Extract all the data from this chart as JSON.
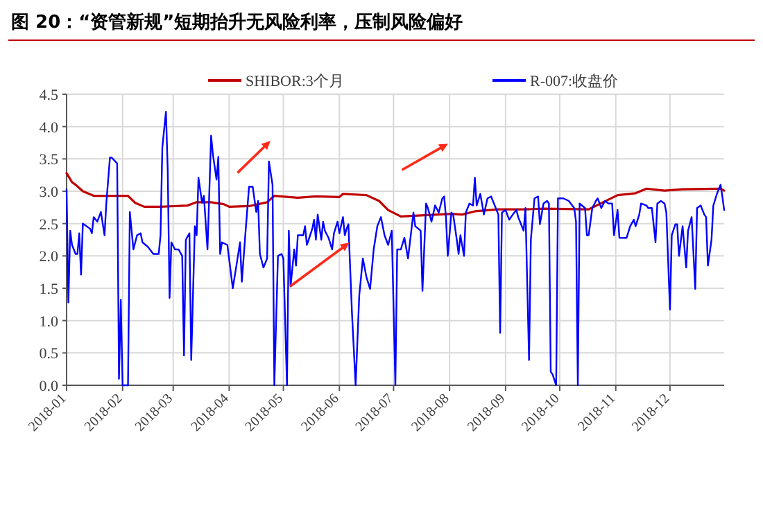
{
  "chart_data": {
    "type": "line",
    "title": "图 20：“资管新规”短期抬升无风险利率，压制风险偏好",
    "xlim": [
      "2018-01-01",
      "2018-12-31"
    ],
    "xticks": [
      "2018-01",
      "2018-02",
      "2018-03",
      "2018-04",
      "2018-05",
      "2018-06",
      "2018-07",
      "2018-08",
      "2018-09",
      "2018-10",
      "2018-11",
      "2018-12"
    ],
    "ylim": [
      0,
      4.5
    ],
    "yticks": [
      {
        "value": 0,
        "label": "0.0"
      },
      {
        "value": 0.5,
        "label": "0.5"
      },
      {
        "value": 1,
        "label": "1.0"
      },
      {
        "value": 1.5,
        "label": "1.5"
      },
      {
        "value": 2,
        "label": "2.0"
      },
      {
        "value": 2.5,
        "label": "2.5"
      },
      {
        "value": 3,
        "label": "3.0"
      },
      {
        "value": 3.5,
        "label": "3.5"
      },
      {
        "value": 4,
        "label": "4.0"
      },
      {
        "value": 4.5,
        "label": "4.5"
      }
    ],
    "grid": true,
    "legend": "top",
    "marker": "none",
    "line_style": "solid",
    "series": [
      {
        "name": "SHIBOR:3个月",
        "color": "#c00000",
        "x": [
          "2018-01-01",
          "2018-01-04",
          "2018-01-06",
          "2018-01-10",
          "2018-01-16",
          "2018-02-04",
          "2018-02-08",
          "2018-02-13",
          "2018-02-22",
          "2018-03-09",
          "2018-03-14",
          "2018-03-22",
          "2018-03-29",
          "2018-04-01",
          "2018-04-12",
          "2018-04-22",
          "2018-04-26",
          "2018-05-09",
          "2018-05-19",
          "2018-06-01",
          "2018-06-03",
          "2018-06-16",
          "2018-06-23",
          "2018-06-28",
          "2018-07-05",
          "2018-07-18",
          "2018-08-02",
          "2018-08-08",
          "2018-08-15",
          "2018-08-28",
          "2018-09-12",
          "2018-09-22",
          "2018-10-17",
          "2018-10-25",
          "2018-11-02",
          "2018-11-12",
          "2018-11-18",
          "2018-11-28",
          "2018-12-08",
          "2018-12-29",
          "2018-12-31"
        ],
        "values": [
          3.28,
          3.14,
          3.1,
          3.0,
          2.93,
          2.93,
          2.82,
          2.76,
          2.76,
          2.78,
          2.83,
          2.83,
          2.8,
          2.76,
          2.77,
          2.83,
          2.93,
          2.9,
          2.92,
          2.91,
          2.96,
          2.94,
          2.85,
          2.71,
          2.61,
          2.63,
          2.65,
          2.64,
          2.69,
          2.72,
          2.72,
          2.73,
          2.72,
          2.83,
          2.94,
          2.97,
          3.04,
          3.01,
          3.03,
          3.04,
          3.01
        ]
      },
      {
        "name": "R-007:收盘价",
        "color": "#0000ff",
        "x": [
          "2018-01-01",
          "2018-01-02",
          "2018-01-03",
          "2018-01-04",
          "2018-01-06",
          "2018-01-07",
          "2018-01-08",
          "2018-01-09",
          "2018-01-10",
          "2018-01-12",
          "2018-01-14",
          "2018-01-15",
          "2018-01-16",
          "2018-01-18",
          "2018-01-20",
          "2018-01-22",
          "2018-01-23",
          "2018-01-25",
          "2018-01-26",
          "2018-01-29",
          "2018-01-30",
          "2018-01-31",
          "2018-02-01",
          "2018-02-02",
          "2018-02-04",
          "2018-02-05",
          "2018-02-07",
          "2018-02-09",
          "2018-02-11",
          "2018-02-12",
          "2018-02-15",
          "2018-02-18",
          "2018-02-21",
          "2018-02-22",
          "2018-02-23",
          "2018-02-25",
          "2018-02-26",
          "2018-02-27",
          "2018-02-28",
          "2018-03-02",
          "2018-03-04",
          "2018-03-06",
          "2018-03-07",
          "2018-03-08",
          "2018-03-10",
          "2018-03-11",
          "2018-03-13",
          "2018-03-14",
          "2018-03-15",
          "2018-03-17",
          "2018-03-18",
          "2018-03-20",
          "2018-03-22",
          "2018-03-23",
          "2018-03-25",
          "2018-03-26",
          "2018-03-27",
          "2018-03-28",
          "2018-03-31",
          "2018-04-03",
          "2018-04-05",
          "2018-04-07",
          "2018-04-08",
          "2018-04-10",
          "2018-04-12",
          "2018-04-14",
          "2018-04-16",
          "2018-04-17",
          "2018-04-18",
          "2018-04-20",
          "2018-04-22",
          "2018-04-23",
          "2018-04-25",
          "2018-04-26",
          "2018-04-28",
          "2018-04-30",
          "2018-05-01",
          "2018-05-03",
          "2018-05-04",
          "2018-05-05",
          "2018-05-07",
          "2018-05-08",
          "2018-05-09",
          "2018-05-12",
          "2018-05-13",
          "2018-05-14",
          "2018-05-15",
          "2018-05-17",
          "2018-05-18",
          "2018-05-19",
          "2018-05-20",
          "2018-05-22",
          "2018-05-23",
          "2018-05-24",
          "2018-05-26",
          "2018-05-28",
          "2018-05-29",
          "2018-05-31",
          "2018-06-01",
          "2018-06-03",
          "2018-06-04",
          "2018-06-05",
          "2018-06-06",
          "2018-06-08",
          "2018-06-10",
          "2018-06-12",
          "2018-06-14",
          "2018-06-16",
          "2018-06-18",
          "2018-06-20",
          "2018-06-22",
          "2018-06-24",
          "2018-06-26",
          "2018-06-28",
          "2018-06-30",
          "2018-07-02",
          "2018-07-03",
          "2018-07-05",
          "2018-07-07",
          "2018-07-09",
          "2018-07-12",
          "2018-07-13",
          "2018-07-16",
          "2018-07-17",
          "2018-07-19",
          "2018-07-20",
          "2018-07-22",
          "2018-07-24",
          "2018-07-26",
          "2018-07-28",
          "2018-07-29",
          "2018-07-30",
          "2018-07-31",
          "2018-08-02",
          "2018-08-03",
          "2018-08-05",
          "2018-08-06",
          "2018-08-07",
          "2018-08-09",
          "2018-08-10",
          "2018-08-12",
          "2018-08-14",
          "2018-08-15",
          "2018-08-16",
          "2018-08-18",
          "2018-08-20",
          "2018-08-22",
          "2018-08-24",
          "2018-08-26",
          "2018-08-28",
          "2018-08-29",
          "2018-08-30",
          "2018-09-01",
          "2018-09-03",
          "2018-09-05",
          "2018-09-07",
          "2018-09-08",
          "2018-09-11",
          "2018-09-12",
          "2018-09-14",
          "2018-09-15",
          "2018-09-17",
          "2018-09-19",
          "2018-09-20",
          "2018-09-22",
          "2018-09-24",
          "2018-09-25",
          "2018-09-26",
          "2018-09-27",
          "2018-09-29",
          "2018-09-30",
          "2018-10-03",
          "2018-10-06",
          "2018-10-09",
          "2018-10-10",
          "2018-10-11",
          "2018-10-12",
          "2018-10-15",
          "2018-10-16",
          "2018-10-17",
          "2018-10-19",
          "2018-10-21",
          "2018-10-22",
          "2018-10-24",
          "2018-10-26",
          "2018-10-28",
          "2018-10-30",
          "2018-10-31",
          "2018-11-02",
          "2018-11-03",
          "2018-11-05",
          "2018-11-07",
          "2018-11-09",
          "2018-11-11",
          "2018-11-12",
          "2018-11-14",
          "2018-11-15",
          "2018-11-18",
          "2018-11-19",
          "2018-11-21",
          "2018-11-23",
          "2018-11-24",
          "2018-11-26",
          "2018-11-28",
          "2018-11-29",
          "2018-12-01",
          "2018-12-02",
          "2018-12-04",
          "2018-12-05",
          "2018-12-06",
          "2018-12-08",
          "2018-12-10",
          "2018-12-11",
          "2018-12-13",
          "2018-12-15",
          "2018-12-16",
          "2018-12-18",
          "2018-12-20",
          "2018-12-21",
          "2018-12-22",
          "2018-12-24",
          "2018-12-25",
          "2018-12-27",
          "2018-12-29",
          "2018-12-30",
          "2018-12-31"
        ],
        "values": [
          3.03,
          1.28,
          2.39,
          2.17,
          2.03,
          2.03,
          2.35,
          1.71,
          2.5,
          2.46,
          2.42,
          2.35,
          2.6,
          2.53,
          2.68,
          2.32,
          2.82,
          3.52,
          3.52,
          3.43,
          0.1,
          1.32,
          0,
          0,
          0,
          2.68,
          2.1,
          2.32,
          2.35,
          2.21,
          2.14,
          2.03,
          2.03,
          2.32,
          3.68,
          4.23,
          3.32,
          1.35,
          2.21,
          2.1,
          2.1,
          2.0,
          0.46,
          2.25,
          2.35,
          0.39,
          2.46,
          2.32,
          3.21,
          2.82,
          2.93,
          2.1,
          3.86,
          3.57,
          3.18,
          3.53,
          2.03,
          2.21,
          2.17,
          1.5,
          1.85,
          2.21,
          1.6,
          2.35,
          3.07,
          3.07,
          2.68,
          2.85,
          2.03,
          1.82,
          1.96,
          3.46,
          3.1,
          0,
          2.0,
          2.03,
          1.96,
          0,
          2.39,
          1.53,
          2.1,
          1.85,
          2.32,
          2.32,
          2.46,
          2.17,
          2.25,
          2.42,
          2.56,
          2.25,
          2.64,
          2.25,
          2.53,
          2.39,
          2.28,
          2.1,
          2.35,
          2.53,
          2.35,
          2.6,
          2.32,
          2.42,
          2.49,
          1.1,
          0,
          1.39,
          1.96,
          1.67,
          1.49,
          2.1,
          2.46,
          2.6,
          2.32,
          2.17,
          2.39,
          0,
          2.1,
          2.1,
          2.28,
          1.96,
          2.67,
          2.46,
          2.39,
          1.46,
          2.81,
          2.74,
          2.53,
          2.78,
          2.67,
          2.89,
          2.92,
          2.6,
          2.0,
          2.67,
          2.64,
          2.25,
          2.03,
          2.32,
          2.0,
          2.67,
          2.81,
          2.78,
          3.21,
          2.78,
          2.96,
          2.64,
          2.89,
          2.92,
          2.78,
          2.64,
          0.81,
          2.67,
          2.71,
          2.56,
          2.64,
          2.71,
          2.6,
          2.39,
          2.74,
          0.39,
          2.25,
          2.89,
          2.92,
          2.49,
          2.81,
          2.85,
          2.81,
          0.21,
          0.17,
          0,
          2.89,
          2.89,
          2.85,
          2.74,
          2.53,
          0,
          2.81,
          2.74,
          2.32,
          2.32,
          2.74,
          2.85,
          2.89,
          2.74,
          2.85,
          2.81,
          2.81,
          2.32,
          2.71,
          2.28,
          2.28,
          2.28,
          2.46,
          2.56,
          2.46,
          2.64,
          2.81,
          2.78,
          2.74,
          2.74,
          2.21,
          2.81,
          2.85,
          2.81,
          2.67,
          1.17,
          2.32,
          2.49,
          2.49,
          2.0,
          2.46,
          1.82,
          2.39,
          2.6,
          1.49,
          2.74,
          2.78,
          2.64,
          2.6,
          1.85,
          2.25,
          2.78,
          2.96,
          3.1,
          2.92,
          2.71
        ]
      }
    ]
  }
}
